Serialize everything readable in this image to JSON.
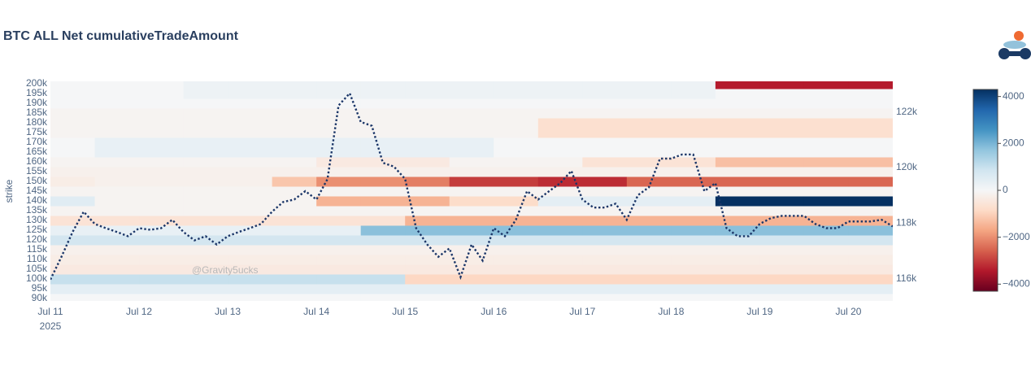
{
  "chart_data": {
    "type": "heatmap",
    "title": "BTC ALL Net cumulativeTradeAmount",
    "y_label": "strike",
    "watermark": "@Gravity5ucks",
    "x_year": "2025",
    "xlim": [
      "2025-07-11 00:00",
      "2025-07-20 12:00"
    ],
    "xticks": [
      {
        "value": "2025-07-11 00:00",
        "label": "Jul 11"
      },
      {
        "value": "2025-07-12 00:00",
        "label": "Jul 12"
      },
      {
        "value": "2025-07-13 00:00",
        "label": "Jul 13"
      },
      {
        "value": "2025-07-14 00:00",
        "label": "Jul 14"
      },
      {
        "value": "2025-07-15 00:00",
        "label": "Jul 15"
      },
      {
        "value": "2025-07-16 00:00",
        "label": "Jul 16"
      },
      {
        "value": "2025-07-17 00:00",
        "label": "Jul 17"
      },
      {
        "value": "2025-07-18 00:00",
        "label": "Jul 18"
      },
      {
        "value": "2025-07-19 00:00",
        "label": "Jul 19"
      },
      {
        "value": "2025-07-20 00:00",
        "label": "Jul 20"
      }
    ],
    "ylim": [
      88750,
      201250
    ],
    "yticks": [
      {
        "value": 90000,
        "label": "90k"
      },
      {
        "value": 95000,
        "label": "95k"
      },
      {
        "value": 100000,
        "label": "100k"
      },
      {
        "value": 105000,
        "label": "105k"
      },
      {
        "value": 110000,
        "label": "110k"
      },
      {
        "value": 115000,
        "label": "115k"
      },
      {
        "value": 120000,
        "label": "120k"
      },
      {
        "value": 125000,
        "label": "125k"
      },
      {
        "value": 130000,
        "label": "130k"
      },
      {
        "value": 135000,
        "label": "135k"
      },
      {
        "value": 140000,
        "label": "140k"
      },
      {
        "value": 145000,
        "label": "145k"
      },
      {
        "value": 150000,
        "label": "150k"
      },
      {
        "value": 155000,
        "label": "155k"
      },
      {
        "value": 160000,
        "label": "160k"
      },
      {
        "value": 165000,
        "label": "165k"
      },
      {
        "value": 170000,
        "label": "170k"
      },
      {
        "value": 175000,
        "label": "175k"
      },
      {
        "value": 180000,
        "label": "180k"
      },
      {
        "value": 185000,
        "label": "185k"
      },
      {
        "value": 190000,
        "label": "190k"
      },
      {
        "value": 195000,
        "label": "195k"
      },
      {
        "value": 200000,
        "label": "200k"
      }
    ],
    "y2lim": [
      115200,
      123100
    ],
    "y2ticks": [
      {
        "value": 116000,
        "label": "116k"
      },
      {
        "value": 118000,
        "label": "118k"
      },
      {
        "value": 120000,
        "label": "120k"
      },
      {
        "value": 122000,
        "label": "122k"
      }
    ],
    "zlim": [
      -4300,
      4300
    ],
    "zticks": [
      {
        "value": -4000,
        "label": "−4000"
      },
      {
        "value": -2000,
        "label": "−2000"
      },
      0,
      2000,
      4000
    ],
    "colorscale": [
      "#67001f",
      "#b2182b",
      "#d6604d",
      "#f4a582",
      "#fddbc7",
      "#f5f6f7",
      "#d1e5f0",
      "#92c5de",
      "#4393c3",
      "#2166ac",
      "#053061"
    ],
    "heatmap": {
      "x": [
        "2025-07-11 06:00",
        "2025-07-11 18:00",
        "2025-07-12 06:00",
        "2025-07-12 18:00",
        "2025-07-13 06:00",
        "2025-07-13 18:00",
        "2025-07-14 06:00",
        "2025-07-14 18:00",
        "2025-07-15 06:00",
        "2025-07-15 18:00",
        "2025-07-16 06:00",
        "2025-07-16 18:00",
        "2025-07-17 06:00",
        "2025-07-17 18:00",
        "2025-07-18 06:00",
        "2025-07-18 18:00",
        "2025-07-19 06:00",
        "2025-07-19 18:00",
        "2025-07-20 06:00"
      ],
      "y": [
        90000,
        95000,
        100000,
        105000,
        110000,
        115000,
        120000,
        125000,
        130000,
        135000,
        140000,
        145000,
        150000,
        155000,
        160000,
        165000,
        170000,
        175000,
        180000,
        185000,
        190000,
        195000,
        200000
      ],
      "z": [
        [
          0,
          0,
          0,
          0,
          0,
          0,
          0,
          0,
          0,
          0,
          0,
          0,
          0,
          0,
          0,
          0,
          0,
          0,
          0
        ],
        [
          400,
          400,
          400,
          400,
          400,
          400,
          400,
          400,
          400,
          400,
          400,
          400,
          400,
          400,
          400,
          400,
          400,
          400,
          400
        ],
        [
          1000,
          1000,
          1000,
          1000,
          1000,
          1000,
          1000,
          1000,
          -900,
          -900,
          -900,
          -900,
          -900,
          -900,
          -900,
          -900,
          -900,
          -900,
          -900
        ],
        [
          -400,
          -400,
          -400,
          -400,
          -400,
          -400,
          -400,
          -400,
          -400,
          -400,
          -400,
          -400,
          -400,
          -400,
          -400,
          -400,
          -400,
          -400,
          -400
        ],
        [
          -300,
          -300,
          -300,
          -300,
          -300,
          -300,
          -300,
          -300,
          -300,
          -300,
          -300,
          -300,
          -300,
          -300,
          -300,
          -300,
          -300,
          -300,
          -300
        ],
        [
          -200,
          -200,
          -200,
          -200,
          -200,
          -200,
          -200,
          -200,
          -200,
          -200,
          -200,
          -200,
          -200,
          -200,
          -200,
          -200,
          -200,
          -200,
          -200
        ],
        [
          800,
          800,
          800,
          800,
          800,
          800,
          800,
          800,
          800,
          800,
          800,
          800,
          800,
          800,
          800,
          800,
          800,
          800,
          800
        ],
        [
          300,
          300,
          300,
          300,
          300,
          300,
          300,
          1800,
          1800,
          1800,
          1800,
          1800,
          1800,
          1800,
          1800,
          1800,
          1800,
          1800,
          1800
        ],
        [
          -600,
          -600,
          -600,
          -600,
          -600,
          -600,
          -600,
          -600,
          -1500,
          -1500,
          -1500,
          -1500,
          -1500,
          -1500,
          -1500,
          -1500,
          -1500,
          -1500,
          -1500
        ],
        [
          -100,
          -100,
          -100,
          -100,
          -100,
          -100,
          -100,
          -100,
          -100,
          -100,
          -100,
          -100,
          -100,
          -100,
          -100,
          -100,
          -100,
          -100,
          -100
        ],
        [
          500,
          -100,
          -100,
          -100,
          -100,
          -100,
          -1500,
          -1500,
          -1500,
          -800,
          -800,
          400,
          400,
          400,
          400,
          4300,
          4300,
          4300,
          4300
        ],
        [
          -100,
          -100,
          -100,
          -100,
          -100,
          -100,
          -100,
          -100,
          -100,
          -100,
          -100,
          -100,
          -100,
          -100,
          -100,
          -100,
          -100,
          -100,
          -100
        ],
        [
          -300,
          -200,
          -200,
          -200,
          -200,
          -1200,
          -2000,
          -2000,
          -2200,
          -3000,
          -3000,
          -3200,
          -3200,
          -2500,
          -2500,
          -2500,
          -2500,
          -2500,
          -2500
        ],
        [
          -200,
          -200,
          -200,
          -200,
          -200,
          -200,
          -200,
          -200,
          -200,
          -200,
          -200,
          -200,
          -200,
          -200,
          -200,
          -200,
          -200,
          -200,
          -200
        ],
        [
          -100,
          -100,
          -100,
          -100,
          -100,
          -100,
          -400,
          -400,
          -400,
          -100,
          -100,
          -100,
          -600,
          -600,
          -600,
          -1300,
          -1300,
          -1300,
          -1300
        ],
        [
          0,
          300,
          300,
          300,
          300,
          300,
          300,
          300,
          300,
          300,
          0,
          0,
          0,
          0,
          0,
          0,
          0,
          0,
          0
        ],
        [
          0,
          300,
          300,
          300,
          300,
          300,
          300,
          300,
          300,
          300,
          0,
          0,
          0,
          0,
          0,
          0,
          0,
          0,
          0
        ],
        [
          -100,
          -100,
          -100,
          -100,
          -100,
          -100,
          -100,
          -100,
          -100,
          -100,
          -100,
          -700,
          -700,
          -700,
          -700,
          -700,
          -700,
          -700,
          -700
        ],
        [
          -100,
          -100,
          -100,
          -100,
          -100,
          -100,
          -100,
          -100,
          -100,
          -100,
          -100,
          -700,
          -700,
          -700,
          -700,
          -700,
          -700,
          -700,
          -700
        ],
        [
          -100,
          -100,
          -100,
          -100,
          -100,
          -100,
          -100,
          -100,
          -100,
          -100,
          -100,
          -100,
          -100,
          -100,
          -100,
          -100,
          -100,
          -100,
          -100
        ],
        [
          0,
          0,
          0,
          0,
          0,
          0,
          0,
          0,
          0,
          0,
          0,
          0,
          0,
          0,
          0,
          0,
          0,
          0,
          0
        ],
        [
          0,
          0,
          0,
          200,
          200,
          200,
          200,
          200,
          200,
          200,
          200,
          200,
          200,
          200,
          200,
          0,
          0,
          0,
          0
        ],
        [
          0,
          0,
          0,
          200,
          200,
          200,
          200,
          200,
          200,
          200,
          200,
          200,
          200,
          200,
          200,
          -3400,
          -3400,
          -3400,
          -3400
        ]
      ]
    },
    "series": [
      {
        "type": "line",
        "axis": "y2",
        "color": "#1b3668",
        "dash": "dot",
        "x": [
          "2025-07-11 00:00",
          "2025-07-11 03:00",
          "2025-07-11 06:00",
          "2025-07-11 09:00",
          "2025-07-11 12:00",
          "2025-07-11 15:00",
          "2025-07-11 18:00",
          "2025-07-11 21:00",
          "2025-07-12 00:00",
          "2025-07-12 03:00",
          "2025-07-12 06:00",
          "2025-07-12 09:00",
          "2025-07-12 12:00",
          "2025-07-12 15:00",
          "2025-07-12 18:00",
          "2025-07-12 21:00",
          "2025-07-13 00:00",
          "2025-07-13 03:00",
          "2025-07-13 06:00",
          "2025-07-13 09:00",
          "2025-07-13 12:00",
          "2025-07-13 15:00",
          "2025-07-13 18:00",
          "2025-07-13 21:00",
          "2025-07-14 00:00",
          "2025-07-14 03:00",
          "2025-07-14 06:00",
          "2025-07-14 09:00",
          "2025-07-14 12:00",
          "2025-07-14 15:00",
          "2025-07-14 18:00",
          "2025-07-14 21:00",
          "2025-07-15 00:00",
          "2025-07-15 03:00",
          "2025-07-15 06:00",
          "2025-07-15 09:00",
          "2025-07-15 12:00",
          "2025-07-15 15:00",
          "2025-07-15 18:00",
          "2025-07-15 21:00",
          "2025-07-16 00:00",
          "2025-07-16 03:00",
          "2025-07-16 06:00",
          "2025-07-16 09:00",
          "2025-07-16 12:00",
          "2025-07-16 15:00",
          "2025-07-16 18:00",
          "2025-07-16 21:00",
          "2025-07-17 00:00",
          "2025-07-17 03:00",
          "2025-07-17 06:00",
          "2025-07-17 09:00",
          "2025-07-17 12:00",
          "2025-07-17 15:00",
          "2025-07-17 18:00",
          "2025-07-17 21:00",
          "2025-07-18 00:00",
          "2025-07-18 03:00",
          "2025-07-18 06:00",
          "2025-07-18 09:00",
          "2025-07-18 12:00",
          "2025-07-18 15:00",
          "2025-07-18 18:00",
          "2025-07-18 21:00",
          "2025-07-19 00:00",
          "2025-07-19 03:00",
          "2025-07-19 06:00",
          "2025-07-19 09:00",
          "2025-07-19 12:00",
          "2025-07-19 15:00",
          "2025-07-19 18:00",
          "2025-07-19 21:00",
          "2025-07-20 00:00",
          "2025-07-20 03:00",
          "2025-07-20 06:00",
          "2025-07-20 09:00",
          "2025-07-20 12:00"
        ],
        "values": [
          115970,
          116790,
          117680,
          118410,
          117970,
          117820,
          117680,
          117530,
          117820,
          117760,
          117820,
          118120,
          117680,
          117380,
          117530,
          117230,
          117530,
          117680,
          117820,
          117970,
          118410,
          118760,
          118850,
          119150,
          118850,
          119590,
          122230,
          122670,
          121640,
          121500,
          120170,
          120030,
          119590,
          117820,
          117230,
          116790,
          117090,
          116060,
          117230,
          116650,
          117820,
          117530,
          118120,
          119150,
          118850,
          119150,
          119440,
          119880,
          118850,
          118560,
          118560,
          118700,
          118120,
          119000,
          119290,
          120320,
          120320,
          120470,
          120470,
          119150,
          119440,
          117820,
          117530,
          117530,
          117970,
          118180,
          118260,
          118260,
          118260,
          117970,
          117820,
          117820,
          118060,
          118060,
          118060,
          118120,
          117880
        ]
      }
    ]
  }
}
